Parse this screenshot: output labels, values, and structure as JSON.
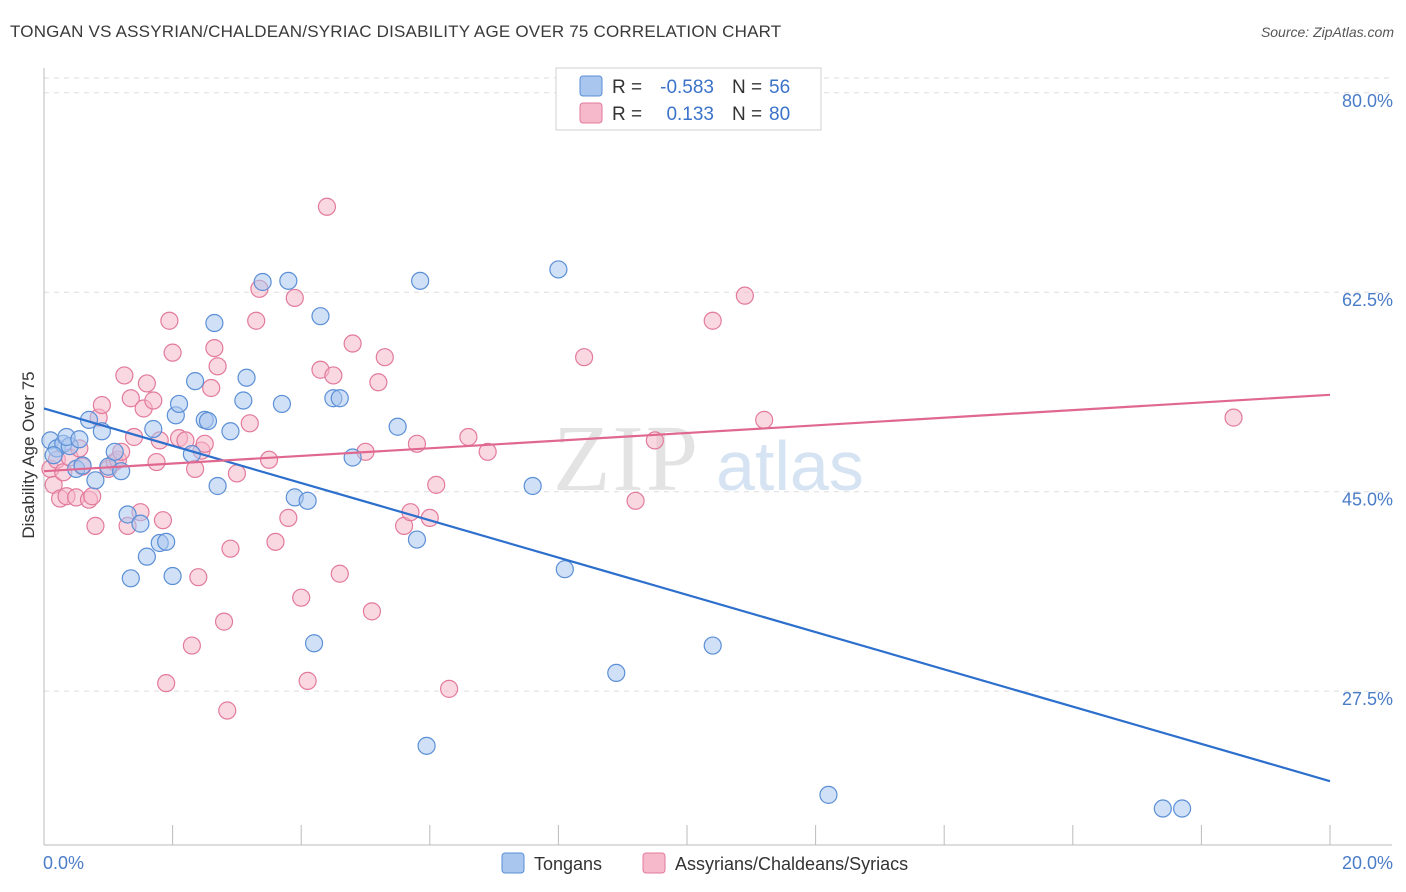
{
  "title": "TONGAN VS ASSYRIAN/CHALDEAN/SYRIAC DISABILITY AGE OVER 75 CORRELATION CHART",
  "source": "Source: ZipAtlas.com",
  "watermark": {
    "zip": "ZIP",
    "atlas": "atlas"
  },
  "colors": {
    "blue_fill": "#a9c6ef",
    "blue_stroke": "#5b8fd6",
    "blue_line": "#2d6fcc",
    "pink_fill": "#f6b8cb",
    "pink_stroke": "#e27a9c",
    "pink_line": "#e06890",
    "grid": "#dddddd",
    "tick_label": "#4a7cc7"
  },
  "legend": {
    "rows": [
      {
        "r_label": "R =",
        "r_value": "-0.583",
        "n_label": "N =",
        "n_value": "56"
      },
      {
        "r_label": "R =",
        "r_value": "0.133",
        "n_label": "N =",
        "n_value": "80"
      }
    ]
  },
  "bottom_legend": [
    "Tongans",
    "Assyrians/Chaldeans/Syriacs"
  ],
  "chart_data": {
    "type": "scatter",
    "title": "TONGAN VS ASSYRIAN/CHALDEAN/SYRIAC DISABILITY AGE OVER 75 CORRELATION CHART",
    "xlabel": "",
    "ylabel": "Disability Age Over 75",
    "xlim": [
      0,
      20
    ],
    "ylim": [
      14,
      82
    ],
    "x_tick_labels": [
      "0.0%",
      "20.0%"
    ],
    "y_ticks": [
      27.5,
      45.0,
      62.5,
      80.0
    ],
    "y_tick_labels": [
      "27.5%",
      "45.0%",
      "62.5%",
      "80.0%"
    ],
    "grid": true,
    "legend_position": "top-center",
    "series": [
      {
        "name": "Tongans",
        "r": -0.583,
        "n": 56,
        "trend": {
          "x": [
            0,
            20
          ],
          "y": [
            52.3,
            19.6
          ]
        },
        "points": [
          [
            0.1,
            49.5
          ],
          [
            0.2,
            48.8
          ],
          [
            0.3,
            49.2
          ],
          [
            0.4,
            49.0
          ],
          [
            0.5,
            47.0
          ],
          [
            0.6,
            47.3
          ],
          [
            0.7,
            51.3
          ],
          [
            0.8,
            46.0
          ],
          [
            0.9,
            50.3
          ],
          [
            1.0,
            47.2
          ],
          [
            1.1,
            48.5
          ],
          [
            1.2,
            46.8
          ],
          [
            1.3,
            43.0
          ],
          [
            1.35,
            37.4
          ],
          [
            1.5,
            42.2
          ],
          [
            1.6,
            39.3
          ],
          [
            1.7,
            50.5
          ],
          [
            1.8,
            40.5
          ],
          [
            1.9,
            40.6
          ],
          [
            2.0,
            37.6
          ],
          [
            2.05,
            51.7
          ],
          [
            2.1,
            52.7
          ],
          [
            2.3,
            48.3
          ],
          [
            2.35,
            54.7
          ],
          [
            2.5,
            51.3
          ],
          [
            2.55,
            51.2
          ],
          [
            2.65,
            59.8
          ],
          [
            2.7,
            45.5
          ],
          [
            2.9,
            50.3
          ],
          [
            3.1,
            53.0
          ],
          [
            3.15,
            55.0
          ],
          [
            3.4,
            63.4
          ],
          [
            3.7,
            52.7
          ],
          [
            3.8,
            63.5
          ],
          [
            3.9,
            44.5
          ],
          [
            4.1,
            44.2
          ],
          [
            4.2,
            31.7
          ],
          [
            4.3,
            60.4
          ],
          [
            4.5,
            53.2
          ],
          [
            4.6,
            53.2
          ],
          [
            4.8,
            48.0
          ],
          [
            5.5,
            50.7
          ],
          [
            5.8,
            40.8
          ],
          [
            5.85,
            63.5
          ],
          [
            5.95,
            22.7
          ],
          [
            7.6,
            45.5
          ],
          [
            8.0,
            64.5
          ],
          [
            8.1,
            38.2
          ],
          [
            8.9,
            29.1
          ],
          [
            10.4,
            31.5
          ],
          [
            12.2,
            18.4
          ],
          [
            17.4,
            17.2
          ],
          [
            17.7,
            17.2
          ],
          [
            0.15,
            48.2
          ],
          [
            0.35,
            49.8
          ],
          [
            0.55,
            49.6
          ]
        ]
      },
      {
        "name": "Assyrians/Chaldeans/Syriacs",
        "r": 0.133,
        "n": 80,
        "trend": {
          "x": [
            0,
            20
          ],
          "y": [
            46.8,
            53.5
          ]
        },
        "points": [
          [
            0.1,
            47.0
          ],
          [
            0.15,
            45.6
          ],
          [
            0.2,
            47.8
          ],
          [
            0.25,
            44.4
          ],
          [
            0.3,
            46.7
          ],
          [
            0.35,
            44.6
          ],
          [
            0.4,
            48.0
          ],
          [
            0.5,
            44.5
          ],
          [
            0.55,
            48.8
          ],
          [
            0.6,
            47.2
          ],
          [
            0.7,
            44.3
          ],
          [
            0.75,
            44.6
          ],
          [
            0.8,
            42.0
          ],
          [
            0.85,
            51.5
          ],
          [
            0.9,
            52.6
          ],
          [
            1.0,
            47.0
          ],
          [
            1.1,
            47.6
          ],
          [
            1.15,
            47.8
          ],
          [
            1.2,
            48.5
          ],
          [
            1.25,
            55.2
          ],
          [
            1.3,
            42.0
          ],
          [
            1.35,
            53.2
          ],
          [
            1.4,
            49.8
          ],
          [
            1.5,
            43.2
          ],
          [
            1.55,
            52.3
          ],
          [
            1.6,
            54.5
          ],
          [
            1.7,
            53.0
          ],
          [
            1.75,
            47.6
          ],
          [
            1.8,
            49.5
          ],
          [
            1.85,
            42.5
          ],
          [
            1.9,
            28.2
          ],
          [
            1.95,
            60.0
          ],
          [
            2.0,
            57.2
          ],
          [
            2.1,
            49.7
          ],
          [
            2.2,
            49.5
          ],
          [
            2.3,
            31.5
          ],
          [
            2.35,
            47.0
          ],
          [
            2.4,
            37.5
          ],
          [
            2.45,
            48.6
          ],
          [
            2.5,
            49.2
          ],
          [
            2.6,
            54.1
          ],
          [
            2.65,
            57.6
          ],
          [
            2.7,
            56.0
          ],
          [
            2.8,
            33.6
          ],
          [
            2.9,
            40.0
          ],
          [
            3.0,
            46.6
          ],
          [
            3.2,
            51.0
          ],
          [
            3.3,
            60.0
          ],
          [
            3.35,
            62.8
          ],
          [
            3.5,
            47.8
          ],
          [
            3.6,
            40.6
          ],
          [
            3.8,
            42.7
          ],
          [
            3.9,
            62.0
          ],
          [
            4.0,
            35.7
          ],
          [
            4.1,
            28.4
          ],
          [
            4.3,
            55.7
          ],
          [
            4.4,
            70.0
          ],
          [
            4.5,
            55.2
          ],
          [
            4.6,
            37.8
          ],
          [
            4.8,
            58.0
          ],
          [
            5.0,
            48.5
          ],
          [
            5.1,
            34.5
          ],
          [
            5.2,
            54.6
          ],
          [
            5.3,
            56.8
          ],
          [
            5.6,
            42.0
          ],
          [
            5.7,
            43.2
          ],
          [
            5.8,
            49.2
          ],
          [
            6.0,
            42.7
          ],
          [
            6.1,
            45.6
          ],
          [
            6.3,
            27.7
          ],
          [
            6.6,
            49.8
          ],
          [
            6.9,
            48.5
          ],
          [
            8.4,
            56.8
          ],
          [
            9.2,
            44.2
          ],
          [
            9.5,
            49.5
          ],
          [
            10.4,
            60.0
          ],
          [
            10.9,
            62.2
          ],
          [
            11.2,
            51.3
          ],
          [
            18.5,
            51.5
          ],
          [
            2.85,
            25.8
          ]
        ]
      }
    ]
  }
}
